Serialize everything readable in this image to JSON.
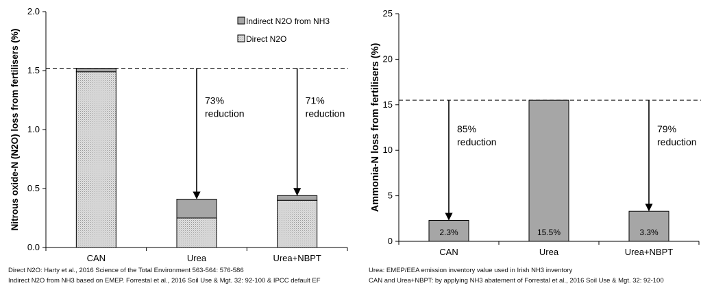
{
  "charts": [
    {
      "type": "bar",
      "stacked": true,
      "ylabel": "Nitrous oxide-N (N2O) loss from fertilisers (%)",
      "ylim": [
        0,
        2.0
      ],
      "yticks": [
        "0.0",
        "0.5",
        "1.0",
        "1.5",
        "2.0"
      ],
      "ytick_values": [
        0,
        0.5,
        1.0,
        1.5,
        2.0
      ],
      "categories": [
        "CAN",
        "Urea",
        "Urea+NBPT"
      ],
      "series": [
        {
          "name": "Direct N2O",
          "values": [
            1.49,
            0.25,
            0.4
          ],
          "color": "#d9d9d9",
          "pattern": "dotted"
        },
        {
          "name": "Indirect N2O from NH3",
          "values": [
            0.03,
            0.16,
            0.04
          ],
          "color": "#a6a6a6",
          "pattern": "solid"
        }
      ],
      "legend": {
        "position": "top-right",
        "order": [
          "Indirect N2O from NH3",
          "Direct N2O"
        ]
      },
      "reference_line": {
        "value": 1.52,
        "style": "dashed"
      },
      "annotations": [
        {
          "lines": [
            "73%",
            "reduction"
          ],
          "category": "Urea",
          "arrow_from": 1.52,
          "arrow_to": 0.41
        },
        {
          "lines": [
            "71%",
            "reduction"
          ],
          "category": "Urea+NBPT",
          "arrow_from": 1.52,
          "arrow_to": 0.44
        }
      ],
      "footnotes": [
        "Direct N2O: Harty et al., 2016 Science of the Total Environment 563-564: 576-586",
        "Indirect N2O from NH3 based on EMEP. Forrestal et al., 2016 Soil Use & Mgt. 32: 92-100 & IPCC  default EF"
      ]
    },
    {
      "type": "bar",
      "ylabel": "Ammonia-N loss from fertilisers (%)",
      "ylim": [
        0,
        25
      ],
      "yticks": [
        "0",
        "5",
        "10",
        "15",
        "20",
        "25"
      ],
      "ytick_values": [
        0,
        5,
        10,
        15,
        20,
        25
      ],
      "categories": [
        "CAN",
        "Urea",
        "Urea+NBPT"
      ],
      "values": [
        2.3,
        15.5,
        3.3
      ],
      "value_labels": [
        "2.3%",
        "15.5%",
        "3.3%"
      ],
      "color": "#a6a6a6",
      "reference_line": {
        "value": 15.5,
        "style": "dashed"
      },
      "annotations": [
        {
          "lines": [
            "85%",
            "reduction"
          ],
          "category": "CAN",
          "arrow_from": 15.5,
          "arrow_to": 2.3
        },
        {
          "lines": [
            "79%",
            "reduction"
          ],
          "category": "Urea+NBPT",
          "arrow_from": 15.5,
          "arrow_to": 3.3
        }
      ],
      "footnotes": [
        "Urea: EMEP/EEA emission inventory value used in Irish NH3 inventory",
        "CAN and Urea+NBPT: by applying NH3 abatement of Forrestal et al., 2016 Soil Use & Mgt. 32: 92-100"
      ]
    }
  ]
}
